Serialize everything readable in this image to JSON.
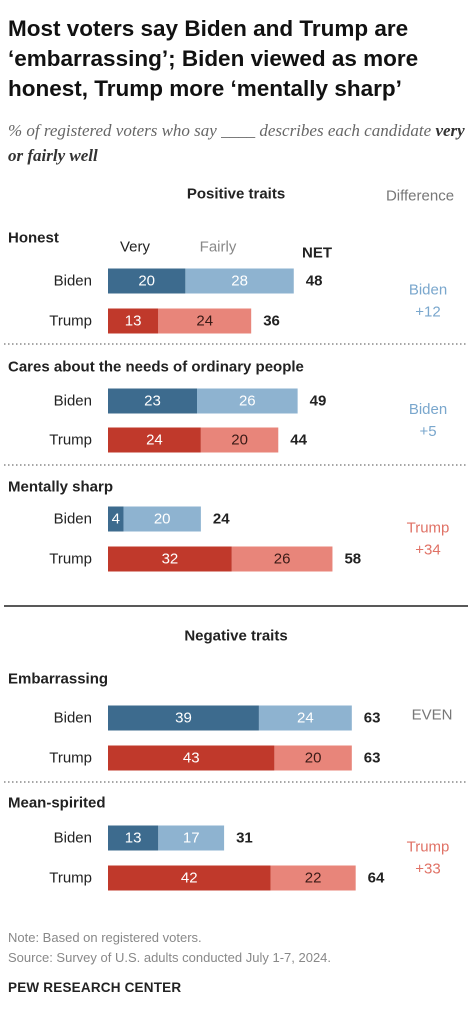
{
  "title": "Most voters say Biden and Trump are ‘embarrassing’; Biden viewed as more honest, Trump more ‘mentally sharp’",
  "subtitle_pre": "% of registered voters who say ",
  "subtitle_blank": "____",
  "subtitle_mid": " describes each candidate ",
  "subtitle_em": "very or fairly well",
  "note": "Note: Based on registered voters.",
  "source": "Source: Survey of U.S. adults conducted July 1-7, 2024.",
  "logo": "PEW RESEARCH CENTER",
  "colors": {
    "biden_very": "#3d6b8e",
    "biden_fairly": "#8eb3d0",
    "trump_very": "#c0392b",
    "trump_fairly": "#e8857a",
    "biden_text": "#7aa7cd",
    "trump_text": "#e07266",
    "even_text": "#777777"
  },
  "chart_data": {
    "type": "bar",
    "stacked": true,
    "orientation": "horizontal",
    "series_labels": {
      "very": "Very",
      "fairly": "Fairly",
      "net": "NET"
    },
    "difference_header": "Difference",
    "sections": [
      {
        "header": "Positive traits",
        "traits": [
          {
            "name": "Honest",
            "difference": [
              "Biden",
              "+12"
            ],
            "difference_party": "biden",
            "rows": [
              {
                "candidate": "Biden",
                "very": 20,
                "fairly": 28,
                "net": 48
              },
              {
                "candidate": "Trump",
                "very": 13,
                "fairly": 24,
                "net": 36
              }
            ]
          },
          {
            "name": "Cares about the needs of ordinary people",
            "difference": [
              "Biden",
              "+5"
            ],
            "difference_party": "biden",
            "rows": [
              {
                "candidate": "Biden",
                "very": 23,
                "fairly": 26,
                "net": 49
              },
              {
                "candidate": "Trump",
                "very": 24,
                "fairly": 20,
                "net": 44
              }
            ]
          },
          {
            "name": "Mentally sharp",
            "difference": [
              "Trump",
              "+34"
            ],
            "difference_party": "trump",
            "rows": [
              {
                "candidate": "Biden",
                "very": 4,
                "fairly": 20,
                "net": 24
              },
              {
                "candidate": "Trump",
                "very": 32,
                "fairly": 26,
                "net": 58
              }
            ]
          }
        ]
      },
      {
        "header": "Negative traits",
        "traits": [
          {
            "name": "Embarrassing",
            "difference": [
              "EVEN"
            ],
            "difference_party": "even",
            "rows": [
              {
                "candidate": "Biden",
                "very": 39,
                "fairly": 24,
                "net": 63
              },
              {
                "candidate": "Trump",
                "very": 43,
                "fairly": 20,
                "net": 63
              }
            ]
          },
          {
            "name": "Mean-spirited",
            "difference": [
              "Trump",
              "+33"
            ],
            "difference_party": "trump",
            "rows": [
              {
                "candidate": "Biden",
                "very": 13,
                "fairly": 17,
                "net": 31
              },
              {
                "candidate": "Trump",
                "very": 42,
                "fairly": 22,
                "net": 64
              }
            ]
          }
        ]
      }
    ]
  }
}
